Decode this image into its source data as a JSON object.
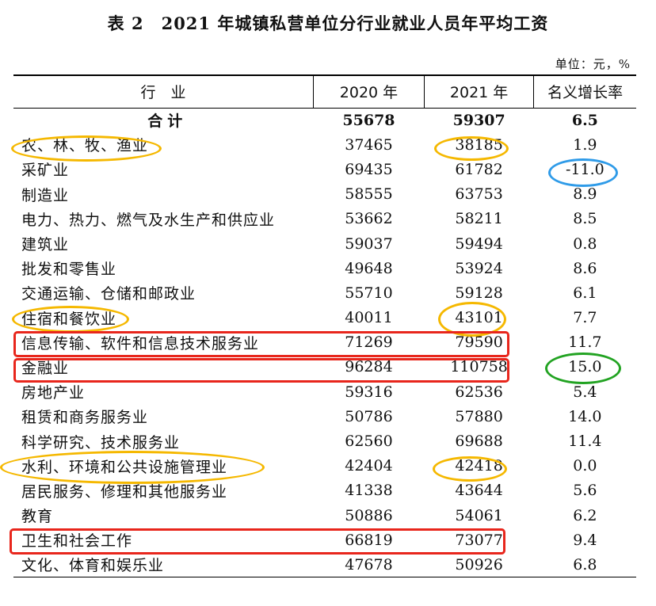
{
  "title": "表 2　2021 年城镇私营单位分行业就业人员年平均工资",
  "unit_label": "单位：元，%",
  "columns": [
    "行　业",
    "2020 年",
    "2021 年",
    "名义增长率"
  ],
  "total_row": {
    "industry": "合计",
    "y2020": "55678",
    "y2021": "59307",
    "growth": "6.5"
  },
  "rows": [
    {
      "industry": "农、林、牧、渔业",
      "y2020": "37465",
      "y2021": "38185",
      "growth": "1.9"
    },
    {
      "industry": "采矿业",
      "y2020": "69435",
      "y2021": "61782",
      "growth": "-11.0"
    },
    {
      "industry": "制造业",
      "y2020": "58555",
      "y2021": "63753",
      "growth": "8.9"
    },
    {
      "industry": "电力、热力、燃气及水生产和供应业",
      "y2020": "53662",
      "y2021": "58211",
      "growth": "8.5"
    },
    {
      "industry": "建筑业",
      "y2020": "59037",
      "y2021": "59494",
      "growth": "0.8"
    },
    {
      "industry": "批发和零售业",
      "y2020": "49648",
      "y2021": "53924",
      "growth": "8.6"
    },
    {
      "industry": "交通运输、仓储和邮政业",
      "y2020": "55710",
      "y2021": "59128",
      "growth": "6.1"
    },
    {
      "industry": "住宿和餐饮业",
      "y2020": "40011",
      "y2021": "43101",
      "growth": "7.7"
    },
    {
      "industry": "信息传输、软件和信息技术服务业",
      "y2020": "71269",
      "y2021": "79590",
      "growth": "11.7"
    },
    {
      "industry": "金融业",
      "y2020": "96284",
      "y2021": "110758",
      "growth": "15.0"
    },
    {
      "industry": "房地产业",
      "y2020": "59316",
      "y2021": "62536",
      "growth": "5.4"
    },
    {
      "industry": "租赁和商务服务业",
      "y2020": "50786",
      "y2021": "57880",
      "growth": "14.0"
    },
    {
      "industry": "科学研究、技术服务业",
      "y2020": "62560",
      "y2021": "69688",
      "growth": "11.4"
    },
    {
      "industry": "水利、环境和公共设施管理业",
      "y2020": "42404",
      "y2021": "42418",
      "growth": "0.0"
    },
    {
      "industry": "居民服务、修理和其他服务业",
      "y2020": "41338",
      "y2021": "43644",
      "growth": "5.6"
    },
    {
      "industry": "教育",
      "y2020": "50886",
      "y2021": "54061",
      "growth": "6.2"
    },
    {
      "industry": "卫生和社会工作",
      "y2020": "66819",
      "y2021": "73077",
      "growth": "9.4"
    },
    {
      "industry": "文化、体育和娱乐业",
      "y2020": "47678",
      "y2021": "50926",
      "growth": "6.8"
    }
  ],
  "annotation_colors": {
    "orange": "#f5b800",
    "blue": "#2f9be8",
    "green": "#22a322",
    "red": "#e8261c"
  }
}
